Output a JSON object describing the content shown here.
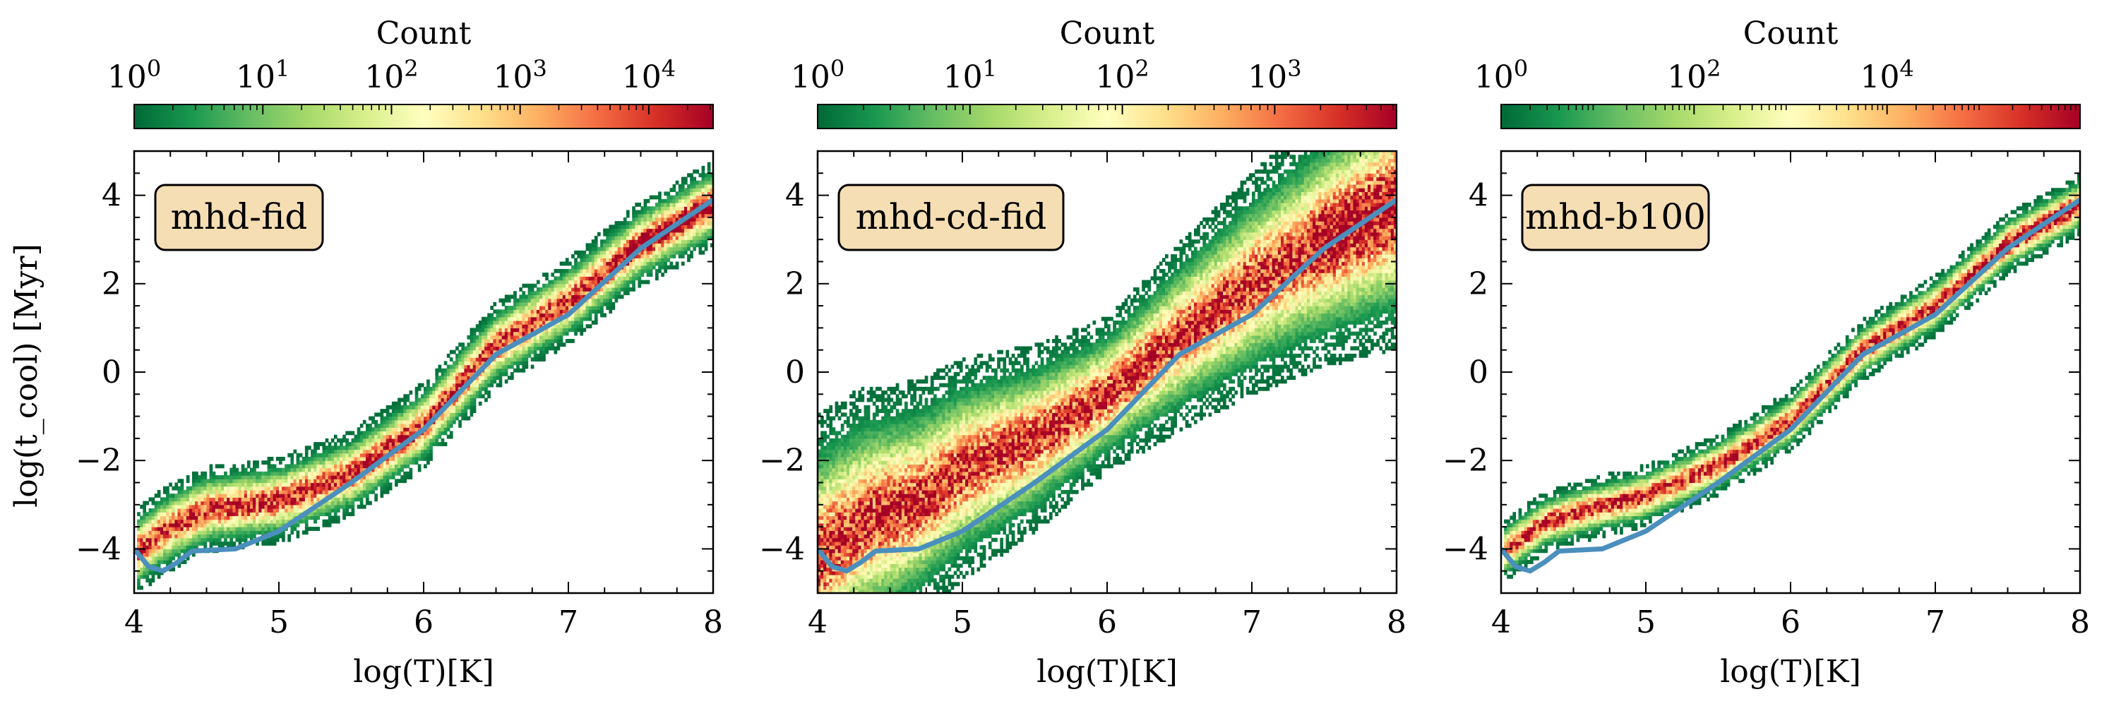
{
  "figure": {
    "xlabel": "log(T)[K]",
    "ylabel": "log(t_cool) [Myr]",
    "colorbar_label": "Count"
  },
  "colors": {
    "reference_curve": "#4a8fbd",
    "label_box_fill": "#f5deb3",
    "colormap": [
      "#006837",
      "#1a9850",
      "#66bd63",
      "#a6d96a",
      "#d9ef8b",
      "#ffffbf",
      "#fee08b",
      "#fdae61",
      "#f46d43",
      "#d73027",
      "#a50026"
    ]
  },
  "chart_data": [
    {
      "type": "heatmap",
      "label": "mhd-fid",
      "xlabel": "log(T)[K]",
      "ylabel": "log(t_cool) [Myr]",
      "xlim": [
        4,
        8
      ],
      "ylim": [
        -5,
        5
      ],
      "xticks": [
        "4",
        "5",
        "6",
        "7",
        "8"
      ],
      "yticks": [
        "-4",
        "-2",
        "0",
        "2",
        "4"
      ],
      "colorbar": {
        "label": "Count",
        "log_max": 4.5,
        "tick_exponents": [
          0,
          1,
          2,
          3,
          4
        ],
        "tick_labels": [
          "10^0",
          "10^1",
          "10^2",
          "10^3",
          "10^4"
        ]
      },
      "ridge": [
        [
          4.0,
          -4.1
        ],
        [
          4.2,
          -3.6
        ],
        [
          4.5,
          -3.1
        ],
        [
          5.0,
          -2.9
        ],
        [
          5.5,
          -2.3
        ],
        [
          6.0,
          -1.2
        ],
        [
          6.5,
          0.6
        ],
        [
          7.0,
          1.6
        ],
        [
          7.5,
          2.9
        ],
        [
          8.0,
          3.8
        ]
      ],
      "spread": 0.35,
      "reference_curve": [
        [
          4.0,
          -4.0
        ],
        [
          4.1,
          -4.4
        ],
        [
          4.2,
          -4.5
        ],
        [
          4.3,
          -4.3
        ],
        [
          4.4,
          -4.05
        ],
        [
          4.7,
          -4.0
        ],
        [
          5.0,
          -3.6
        ],
        [
          5.5,
          -2.5
        ],
        [
          6.0,
          -1.3
        ],
        [
          6.5,
          0.4
        ],
        [
          7.0,
          1.3
        ],
        [
          7.5,
          2.8
        ],
        [
          8.0,
          3.9
        ]
      ]
    },
    {
      "type": "heatmap",
      "label": "mhd-cd-fid",
      "xlabel": "log(T)[K]",
      "ylabel": "",
      "xlim": [
        4,
        8
      ],
      "ylim": [
        -5,
        5
      ],
      "xticks": [
        "4",
        "5",
        "6",
        "7",
        "8"
      ],
      "yticks": [
        "-4",
        "-2",
        "0",
        "2",
        "4"
      ],
      "colorbar": {
        "label": "Count",
        "log_max": 3.8,
        "tick_exponents": [
          0,
          1,
          2,
          3
        ],
        "tick_labels": [
          "10^0",
          "10^1",
          "10^2",
          "10^3"
        ]
      },
      "ridge": [
        [
          4.0,
          -4.2
        ],
        [
          4.3,
          -3.4
        ],
        [
          4.7,
          -2.9
        ],
        [
          5.0,
          -2.2
        ],
        [
          5.5,
          -1.5
        ],
        [
          6.0,
          -0.5
        ],
        [
          6.5,
          0.8
        ],
        [
          7.0,
          2.0
        ],
        [
          7.5,
          3.0
        ],
        [
          8.0,
          3.8
        ]
      ],
      "spread": 0.9,
      "reference_curve": [
        [
          4.0,
          -4.0
        ],
        [
          4.1,
          -4.4
        ],
        [
          4.2,
          -4.5
        ],
        [
          4.3,
          -4.3
        ],
        [
          4.4,
          -4.05
        ],
        [
          4.7,
          -4.0
        ],
        [
          5.0,
          -3.6
        ],
        [
          5.5,
          -2.5
        ],
        [
          6.0,
          -1.3
        ],
        [
          6.5,
          0.4
        ],
        [
          7.0,
          1.3
        ],
        [
          7.5,
          2.8
        ],
        [
          8.0,
          3.9
        ]
      ]
    },
    {
      "type": "heatmap",
      "label": "mhd-b100",
      "xlabel": "log(T)[K]",
      "ylabel": "",
      "xlim": [
        4,
        8
      ],
      "ylim": [
        -5,
        5
      ],
      "xticks": [
        "4",
        "5",
        "6",
        "7",
        "8"
      ],
      "yticks": [
        "-4",
        "-2",
        "0",
        "2",
        "4"
      ],
      "colorbar": {
        "label": "Count",
        "log_max": 6.0,
        "tick_exponents": [
          0,
          2,
          4
        ],
        "tick_labels": [
          "10^0",
          "10^2",
          "10^4"
        ]
      },
      "ridge": [
        [
          4.0,
          -4.1
        ],
        [
          4.3,
          -3.4
        ],
        [
          4.6,
          -3.1
        ],
        [
          5.0,
          -2.8
        ],
        [
          5.5,
          -2.1
        ],
        [
          6.0,
          -1.1
        ],
        [
          6.5,
          0.5
        ],
        [
          7.0,
          1.5
        ],
        [
          7.5,
          2.9
        ],
        [
          8.0,
          3.8
        ]
      ],
      "spread": 0.25,
      "reference_curve": [
        [
          4.0,
          -4.0
        ],
        [
          4.1,
          -4.4
        ],
        [
          4.2,
          -4.5
        ],
        [
          4.3,
          -4.3
        ],
        [
          4.4,
          -4.05
        ],
        [
          4.7,
          -4.0
        ],
        [
          5.0,
          -3.6
        ],
        [
          5.5,
          -2.5
        ],
        [
          6.0,
          -1.3
        ],
        [
          6.5,
          0.4
        ],
        [
          7.0,
          1.3
        ],
        [
          7.5,
          2.8
        ],
        [
          8.0,
          3.9
        ]
      ]
    }
  ]
}
